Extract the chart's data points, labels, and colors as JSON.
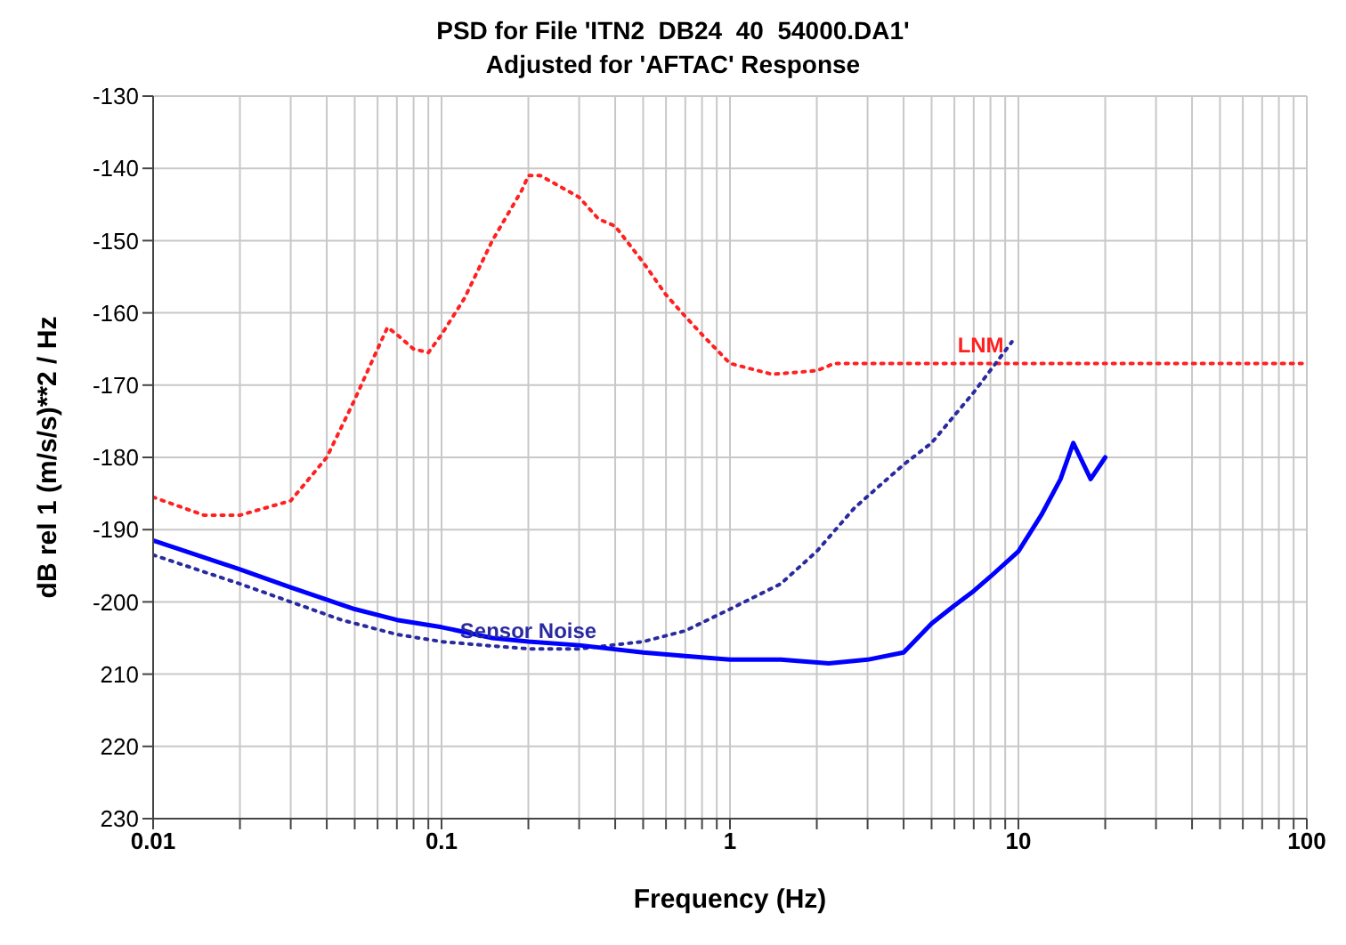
{
  "chart_data": {
    "type": "line",
    "title": "PSD for File 'ITN2  DB24  40  54000.DA1'",
    "subtitle": "Adjusted for 'AFTAC' Response",
    "xlabel": "Frequency (Hz)",
    "ylabel": "dB rel 1 (m/s/s)**2 / Hz",
    "log": "x",
    "grid": true,
    "legend": false,
    "xlim": [
      0.01,
      100
    ],
    "ylim": [
      -230,
      -130
    ],
    "xticks": [
      {
        "value": 0.01,
        "label": "0.01"
      },
      {
        "value": 0.02,
        "label": null
      },
      {
        "value": 0.03,
        "label": null
      },
      {
        "value": 0.04,
        "label": null
      },
      {
        "value": 0.05,
        "label": null
      },
      {
        "value": 0.06,
        "label": null
      },
      {
        "value": 0.07,
        "label": null
      },
      {
        "value": 0.08,
        "label": null
      },
      {
        "value": 0.09,
        "label": null
      },
      {
        "value": 0.1,
        "label": "0.1"
      },
      {
        "value": 0.2,
        "label": null
      },
      {
        "value": 0.3,
        "label": null
      },
      {
        "value": 0.4,
        "label": null
      },
      {
        "value": 0.5,
        "label": null
      },
      {
        "value": 0.6,
        "label": null
      },
      {
        "value": 0.7,
        "label": null
      },
      {
        "value": 0.8,
        "label": null
      },
      {
        "value": 0.9,
        "label": null
      },
      1,
      {
        "value": 2,
        "label": null
      },
      {
        "value": 3,
        "label": null
      },
      {
        "value": 4,
        "label": null
      },
      {
        "value": 5,
        "label": null
      },
      {
        "value": 6,
        "label": null
      },
      {
        "value": 7,
        "label": null
      },
      {
        "value": 8,
        "label": null
      },
      {
        "value": 9,
        "label": null
      },
      10,
      {
        "value": 20,
        "label": null
      },
      {
        "value": 30,
        "label": null
      },
      {
        "value": 40,
        "label": null
      },
      {
        "value": 50,
        "label": null
      },
      {
        "value": 60,
        "label": null
      },
      {
        "value": 70,
        "label": null
      },
      {
        "value": 80,
        "label": null
      },
      {
        "value": 90,
        "label": null
      },
      100
    ],
    "yticks": [
      {
        "value": -230,
        "label": "230"
      },
      {
        "value": -220,
        "label": "220"
      },
      {
        "value": -210,
        "label": "210"
      },
      -200,
      -190,
      -180,
      -170,
      -160,
      -150,
      -140,
      -130
    ],
    "annotations": [
      {
        "text": "LNM",
        "x": 7.4,
        "y": -167
      },
      {
        "text": "Sensor Noise",
        "x": 0.2,
        "y": -206.5
      }
    ],
    "series": [
      {
        "color": "#ff2020",
        "line_style": "dotted",
        "x": [
          0.01,
          0.015,
          0.02,
          0.03,
          0.04,
          0.05,
          0.06,
          0.065,
          0.07,
          0.08,
          0.09,
          0.1,
          0.12,
          0.15,
          0.19,
          0.2,
          0.22,
          0.3,
          0.35,
          0.4,
          0.5,
          0.6,
          0.7,
          0.8,
          1,
          1.4,
          2,
          2.3,
          100
        ],
        "values": [
          -185.5,
          -188,
          -188,
          -186,
          -180,
          -172,
          -165,
          -162,
          -163,
          -165,
          -165.5,
          -163,
          -158,
          -150,
          -143,
          -141,
          -141,
          -144,
          -147,
          -148,
          -153,
          -157.5,
          -160.5,
          -163,
          -167,
          -168.5,
          -168,
          -167,
          -167
        ]
      },
      {
        "color": "#2a2aa0",
        "line_style": "dotted",
        "x": [
          0.01,
          0.02,
          0.03,
          0.045,
          0.07,
          0.1,
          0.14,
          0.2,
          0.3,
          0.5,
          0.7,
          1,
          1.5,
          2,
          2.7,
          4,
          5,
          7,
          9.5
        ],
        "values": [
          -193.5,
          -197.5,
          -200,
          -202.5,
          -204.5,
          -205.5,
          -206,
          -206.5,
          -206.5,
          -205.5,
          -204,
          -201,
          -197.5,
          -193,
          -187,
          -181,
          -178,
          -171,
          -164
        ]
      },
      {
        "color": "#0000ff",
        "line_style": "solid",
        "x": [
          0.01,
          0.02,
          0.03,
          0.05,
          0.07,
          0.1,
          0.15,
          0.2,
          0.3,
          0.5,
          0.7,
          1,
          1.5,
          2.2,
          3,
          4,
          5,
          6,
          7,
          8,
          10,
          12,
          14,
          15.5,
          17.8,
          20
        ],
        "values": [
          -191.5,
          -195.5,
          -198,
          -201,
          -202.5,
          -203.5,
          -205,
          -205.5,
          -206,
          -207,
          -207.5,
          -208,
          -208,
          -208.5,
          -208,
          -207,
          -203,
          -200.5,
          -198.5,
          -196.5,
          -193,
          -188,
          -183,
          -178,
          -183,
          -180
        ]
      }
    ]
  }
}
